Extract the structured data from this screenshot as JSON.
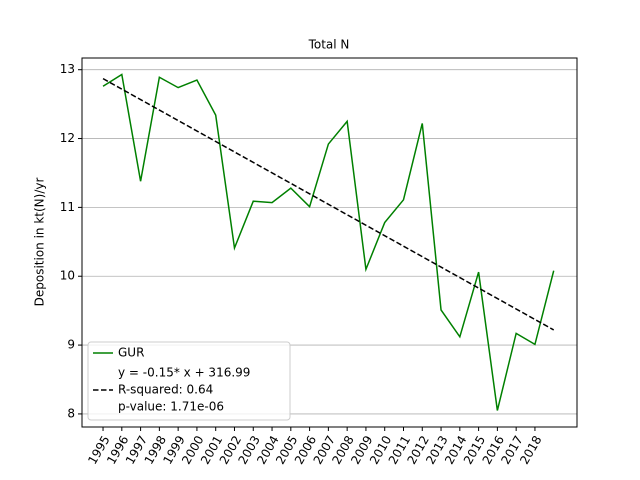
{
  "chart_data": {
    "type": "line",
    "title": "Total N",
    "ylabel": "Deposition in kt(N)/yr",
    "x": [
      1995,
      1996,
      1997,
      1998,
      1999,
      2000,
      2001,
      2002,
      2003,
      2004,
      2005,
      2006,
      2007,
      2008,
      2009,
      2010,
      2011,
      2012,
      2013,
      2014,
      2015,
      2016,
      2017,
      2018,
      2019
    ],
    "series": [
      {
        "name": "GUR",
        "color": "#008000",
        "style": "solid",
        "values": [
          12.76,
          12.93,
          11.38,
          12.89,
          12.74,
          12.85,
          12.34,
          10.41,
          11.09,
          11.07,
          11.28,
          11.01,
          11.92,
          12.25,
          10.1,
          10.78,
          11.11,
          12.22,
          9.51,
          9.12,
          10.06,
          8.05,
          9.17,
          9.01,
          10.08
        ]
      },
      {
        "name": [
          "y = -0.15* x + 316.99",
          "R-squared: 0.64",
          "p-value: 1.71e-06"
        ],
        "color": "#000000",
        "style": "dashed",
        "x": [
          1995,
          2019
        ],
        "values": [
          12.87,
          9.22
        ]
      }
    ],
    "xlim": [
      1993.88,
      2020.24
    ],
    "xticks": [
      1995,
      1996,
      1997,
      1998,
      1999,
      2000,
      2001,
      2002,
      2003,
      2004,
      2005,
      2006,
      2007,
      2008,
      2009,
      2010,
      2011,
      2012,
      2013,
      2014,
      2015,
      2016,
      2017,
      2018
    ],
    "ylim": [
      7.81,
      13.17
    ],
    "yticks": [
      8,
      9,
      10,
      11,
      12,
      13
    ],
    "grid": "y",
    "legend": "lower left"
  }
}
